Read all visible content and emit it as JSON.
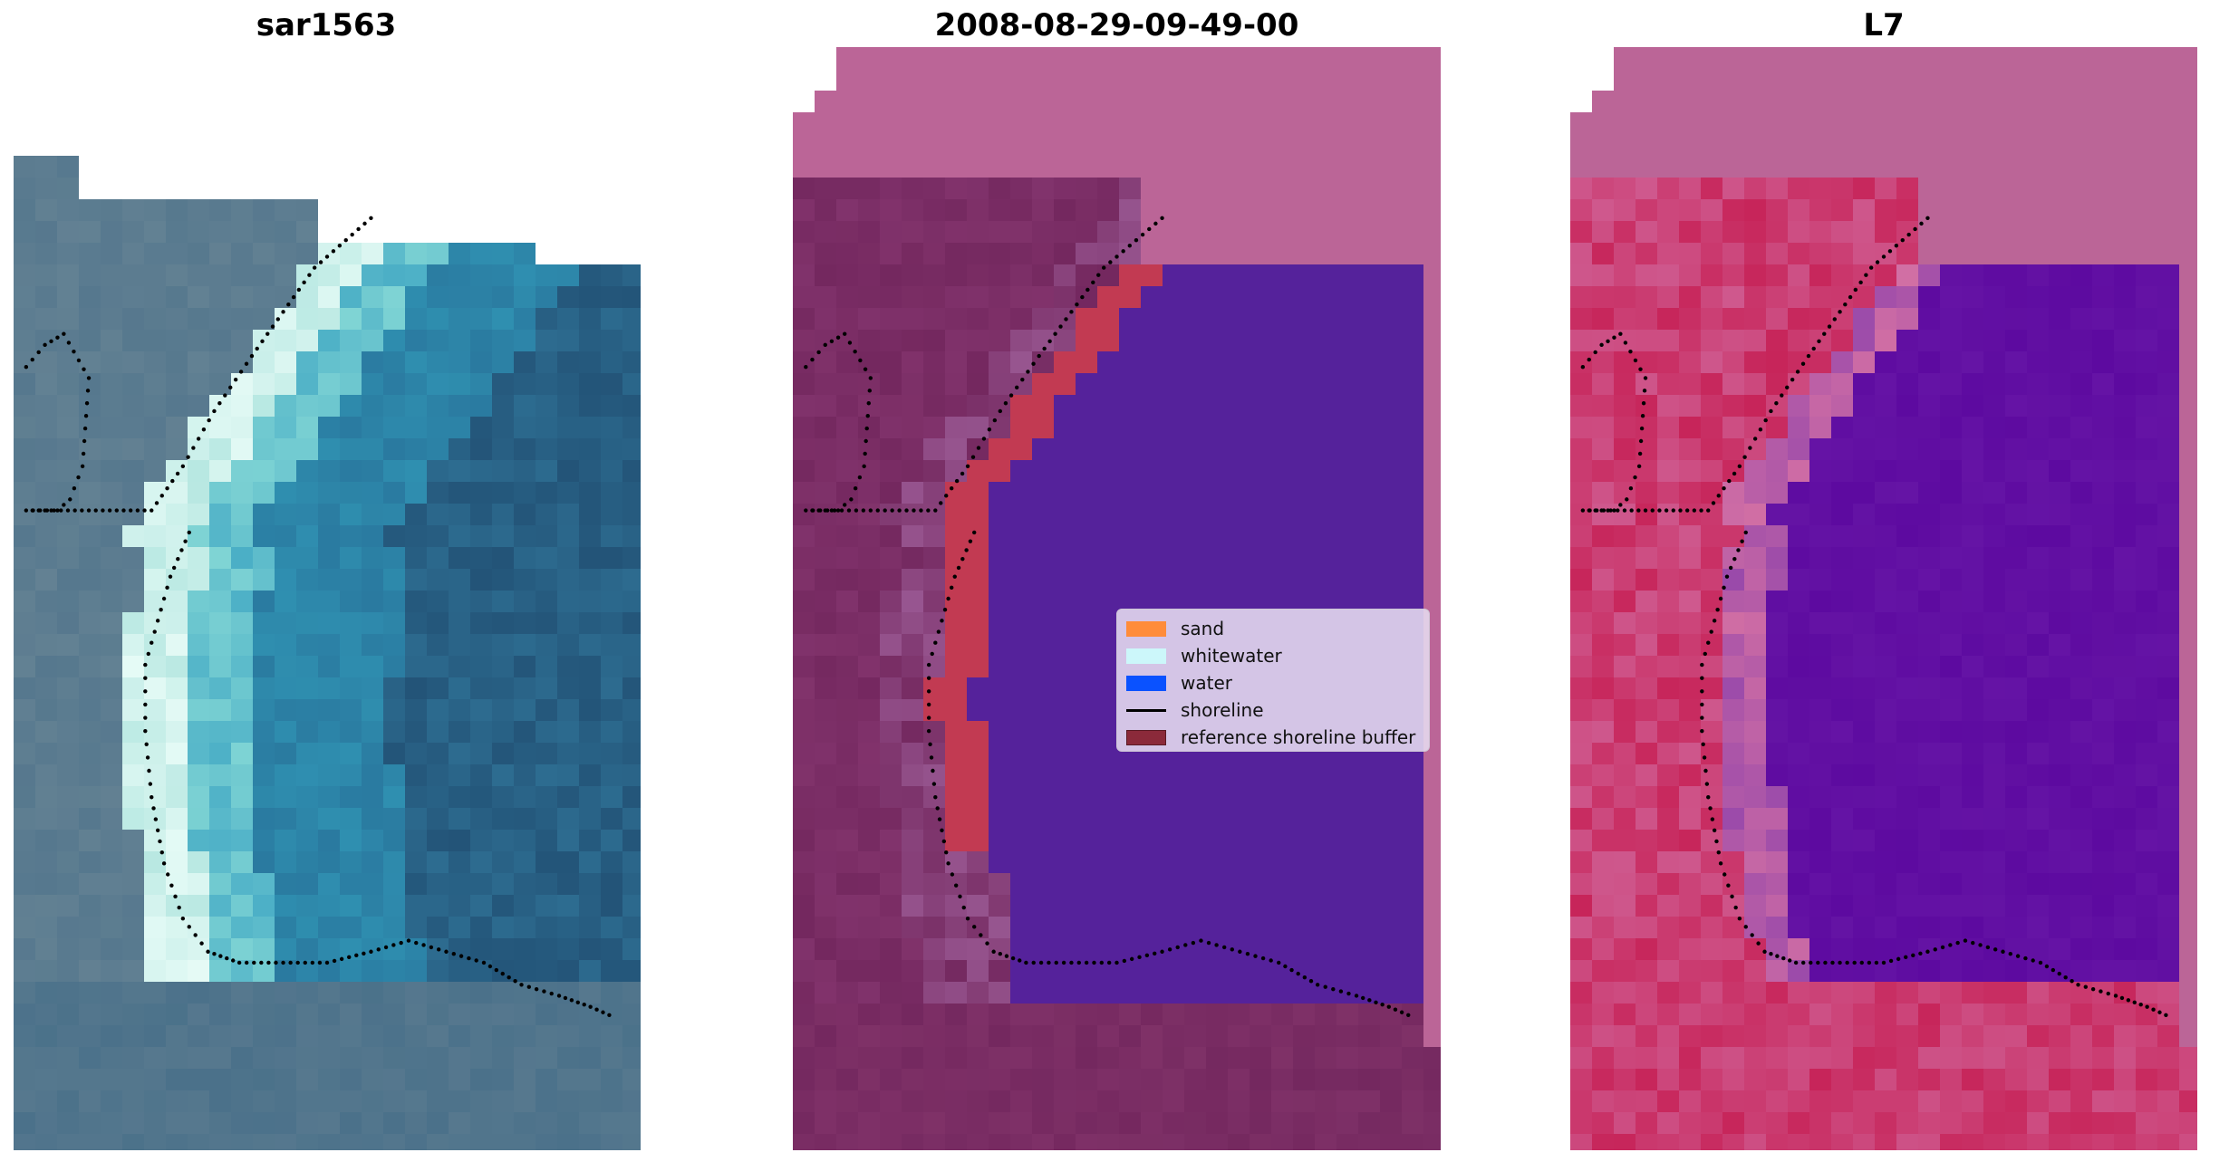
{
  "titles": {
    "panel1": "sar1563",
    "panel2": "2008-08-29-09-49-00",
    "panel3": "L7"
  },
  "legend": {
    "items": [
      {
        "label": "sand",
        "color": "#ff8c3a"
      },
      {
        "label": "whitewater",
        "color": "#ccf7fa"
      },
      {
        "label": "water",
        "color": "#0a52ff"
      },
      {
        "label": "shoreline",
        "color": "#000000"
      },
      {
        "label": "reference shoreline buffer",
        "color": "#8b2a3a"
      }
    ]
  },
  "colors": {
    "rgb_water_deep": "#235478",
    "rgb_water_mid": "#2f8fb0",
    "rgb_land": "#56788e",
    "rgb_whitewater": "#e6fbf6",
    "class_background": "#bb6597",
    "class_water": "#55229b",
    "class_land": "#74285f",
    "class_buffer": "#c23a52",
    "class_light": "#a76aa6",
    "index_background": "#bb6597",
    "index_water": "#5d0aa0",
    "index_land": "#c7255a",
    "index_edge": "#d26fa4"
  }
}
